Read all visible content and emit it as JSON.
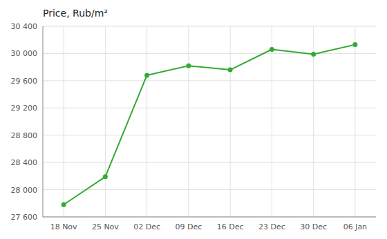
{
  "chart_data": {
    "type": "line",
    "title": "Price, Rub/m²",
    "categories": [
      "18 Nov",
      "25 Nov",
      "02 Dec",
      "09 Dec",
      "16 Dec",
      "23 Dec",
      "30 Dec",
      "06 Jan"
    ],
    "values": [
      27780,
      28190,
      29680,
      29820,
      29760,
      30060,
      29990,
      30130
    ],
    "color": "#33aa33",
    "marker": "circle",
    "ylim": [
      27600,
      30400
    ],
    "yticks": [
      {
        "value": 27600,
        "label": "27 600"
      },
      {
        "value": 28000,
        "label": "28 000"
      },
      {
        "value": 28400,
        "label": "28 400"
      },
      {
        "value": 28800,
        "label": "28 800"
      },
      {
        "value": 29200,
        "label": "29 200"
      },
      {
        "value": 29600,
        "label": "29 600"
      },
      {
        "value": 30000,
        "label": "30 000"
      },
      {
        "value": 30400,
        "label": "30 400"
      }
    ],
    "grid": true
  }
}
